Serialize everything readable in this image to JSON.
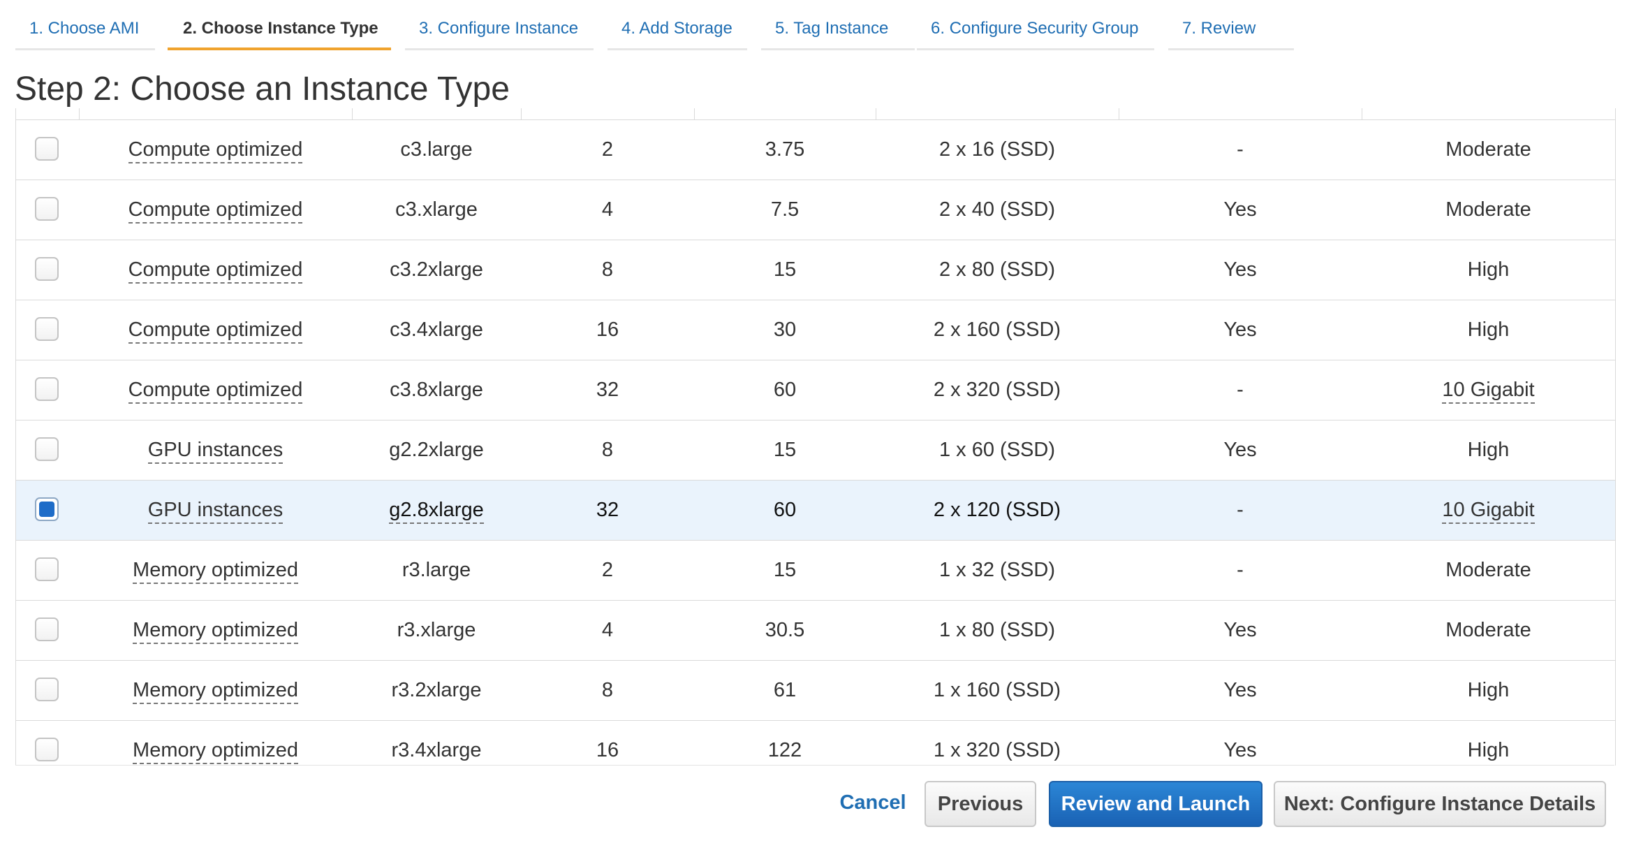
{
  "wizard": {
    "tabs": [
      {
        "label": "1. Choose AMI"
      },
      {
        "label": "2. Choose Instance Type"
      },
      {
        "label": "3. Configure Instance"
      },
      {
        "label": "4. Add Storage"
      },
      {
        "label": "5. Tag Instance"
      },
      {
        "label": "6. Configure Security Group"
      },
      {
        "label": "7. Review"
      }
    ],
    "active_tab": "2. Choose Instance Type"
  },
  "page": {
    "title": "Step 2: Choose an Instance Type"
  },
  "table": {
    "rows": [
      {
        "family": "Compute optimized",
        "type": "c3.large",
        "vcpus": "2",
        "memory": "3.75",
        "storage": "2 x 16 (SSD)",
        "ebs_optimized": "-",
        "network": "Moderate",
        "selected": false
      },
      {
        "family": "Compute optimized",
        "type": "c3.xlarge",
        "vcpus": "4",
        "memory": "7.5",
        "storage": "2 x 40 (SSD)",
        "ebs_optimized": "Yes",
        "network": "Moderate",
        "selected": false
      },
      {
        "family": "Compute optimized",
        "type": "c3.2xlarge",
        "vcpus": "8",
        "memory": "15",
        "storage": "2 x 80 (SSD)",
        "ebs_optimized": "Yes",
        "network": "High",
        "selected": false
      },
      {
        "family": "Compute optimized",
        "type": "c3.4xlarge",
        "vcpus": "16",
        "memory": "30",
        "storage": "2 x 160 (SSD)",
        "ebs_optimized": "Yes",
        "network": "High",
        "selected": false
      },
      {
        "family": "Compute optimized",
        "type": "c3.8xlarge",
        "vcpus": "32",
        "memory": "60",
        "storage": "2 x 320 (SSD)",
        "ebs_optimized": "-",
        "network": "10 Gigabit",
        "selected": false
      },
      {
        "family": "GPU instances",
        "type": "g2.2xlarge",
        "vcpus": "8",
        "memory": "15",
        "storage": "1 x 60 (SSD)",
        "ebs_optimized": "Yes",
        "network": "High",
        "selected": false
      },
      {
        "family": "GPU instances",
        "type": "g2.8xlarge",
        "vcpus": "32",
        "memory": "60",
        "storage": "2 x 120 (SSD)",
        "ebs_optimized": "-",
        "network": "10 Gigabit",
        "selected": true
      },
      {
        "family": "Memory optimized",
        "type": "r3.large",
        "vcpus": "2",
        "memory": "15",
        "storage": "1 x 32 (SSD)",
        "ebs_optimized": "-",
        "network": "Moderate",
        "selected": false
      },
      {
        "family": "Memory optimized",
        "type": "r3.xlarge",
        "vcpus": "4",
        "memory": "30.5",
        "storage": "1 x 80 (SSD)",
        "ebs_optimized": "Yes",
        "network": "Moderate",
        "selected": false
      },
      {
        "family": "Memory optimized",
        "type": "r3.2xlarge",
        "vcpus": "8",
        "memory": "61",
        "storage": "1 x 160 (SSD)",
        "ebs_optimized": "Yes",
        "network": "High",
        "selected": false
      },
      {
        "family": "Memory optimized",
        "type": "r3.4xlarge",
        "vcpus": "16",
        "memory": "122",
        "storage": "1 x 320 (SSD)",
        "ebs_optimized": "Yes",
        "network": "High",
        "selected": false
      }
    ]
  },
  "footer": {
    "cancel_label": "Cancel",
    "previous_label": "Previous",
    "review_launch_label": "Review and Launch",
    "next_label": "Next: Configure Instance Details"
  },
  "colors": {
    "link": "#1f6eb3",
    "active_tab_underline": "#f0a32e",
    "primary_button": "#1a62b4",
    "selected_row": "#eaf3fc",
    "checkbox_checked": "#1e6cc8"
  },
  "icons": {
    "checkbox": "checkbox-icon"
  }
}
